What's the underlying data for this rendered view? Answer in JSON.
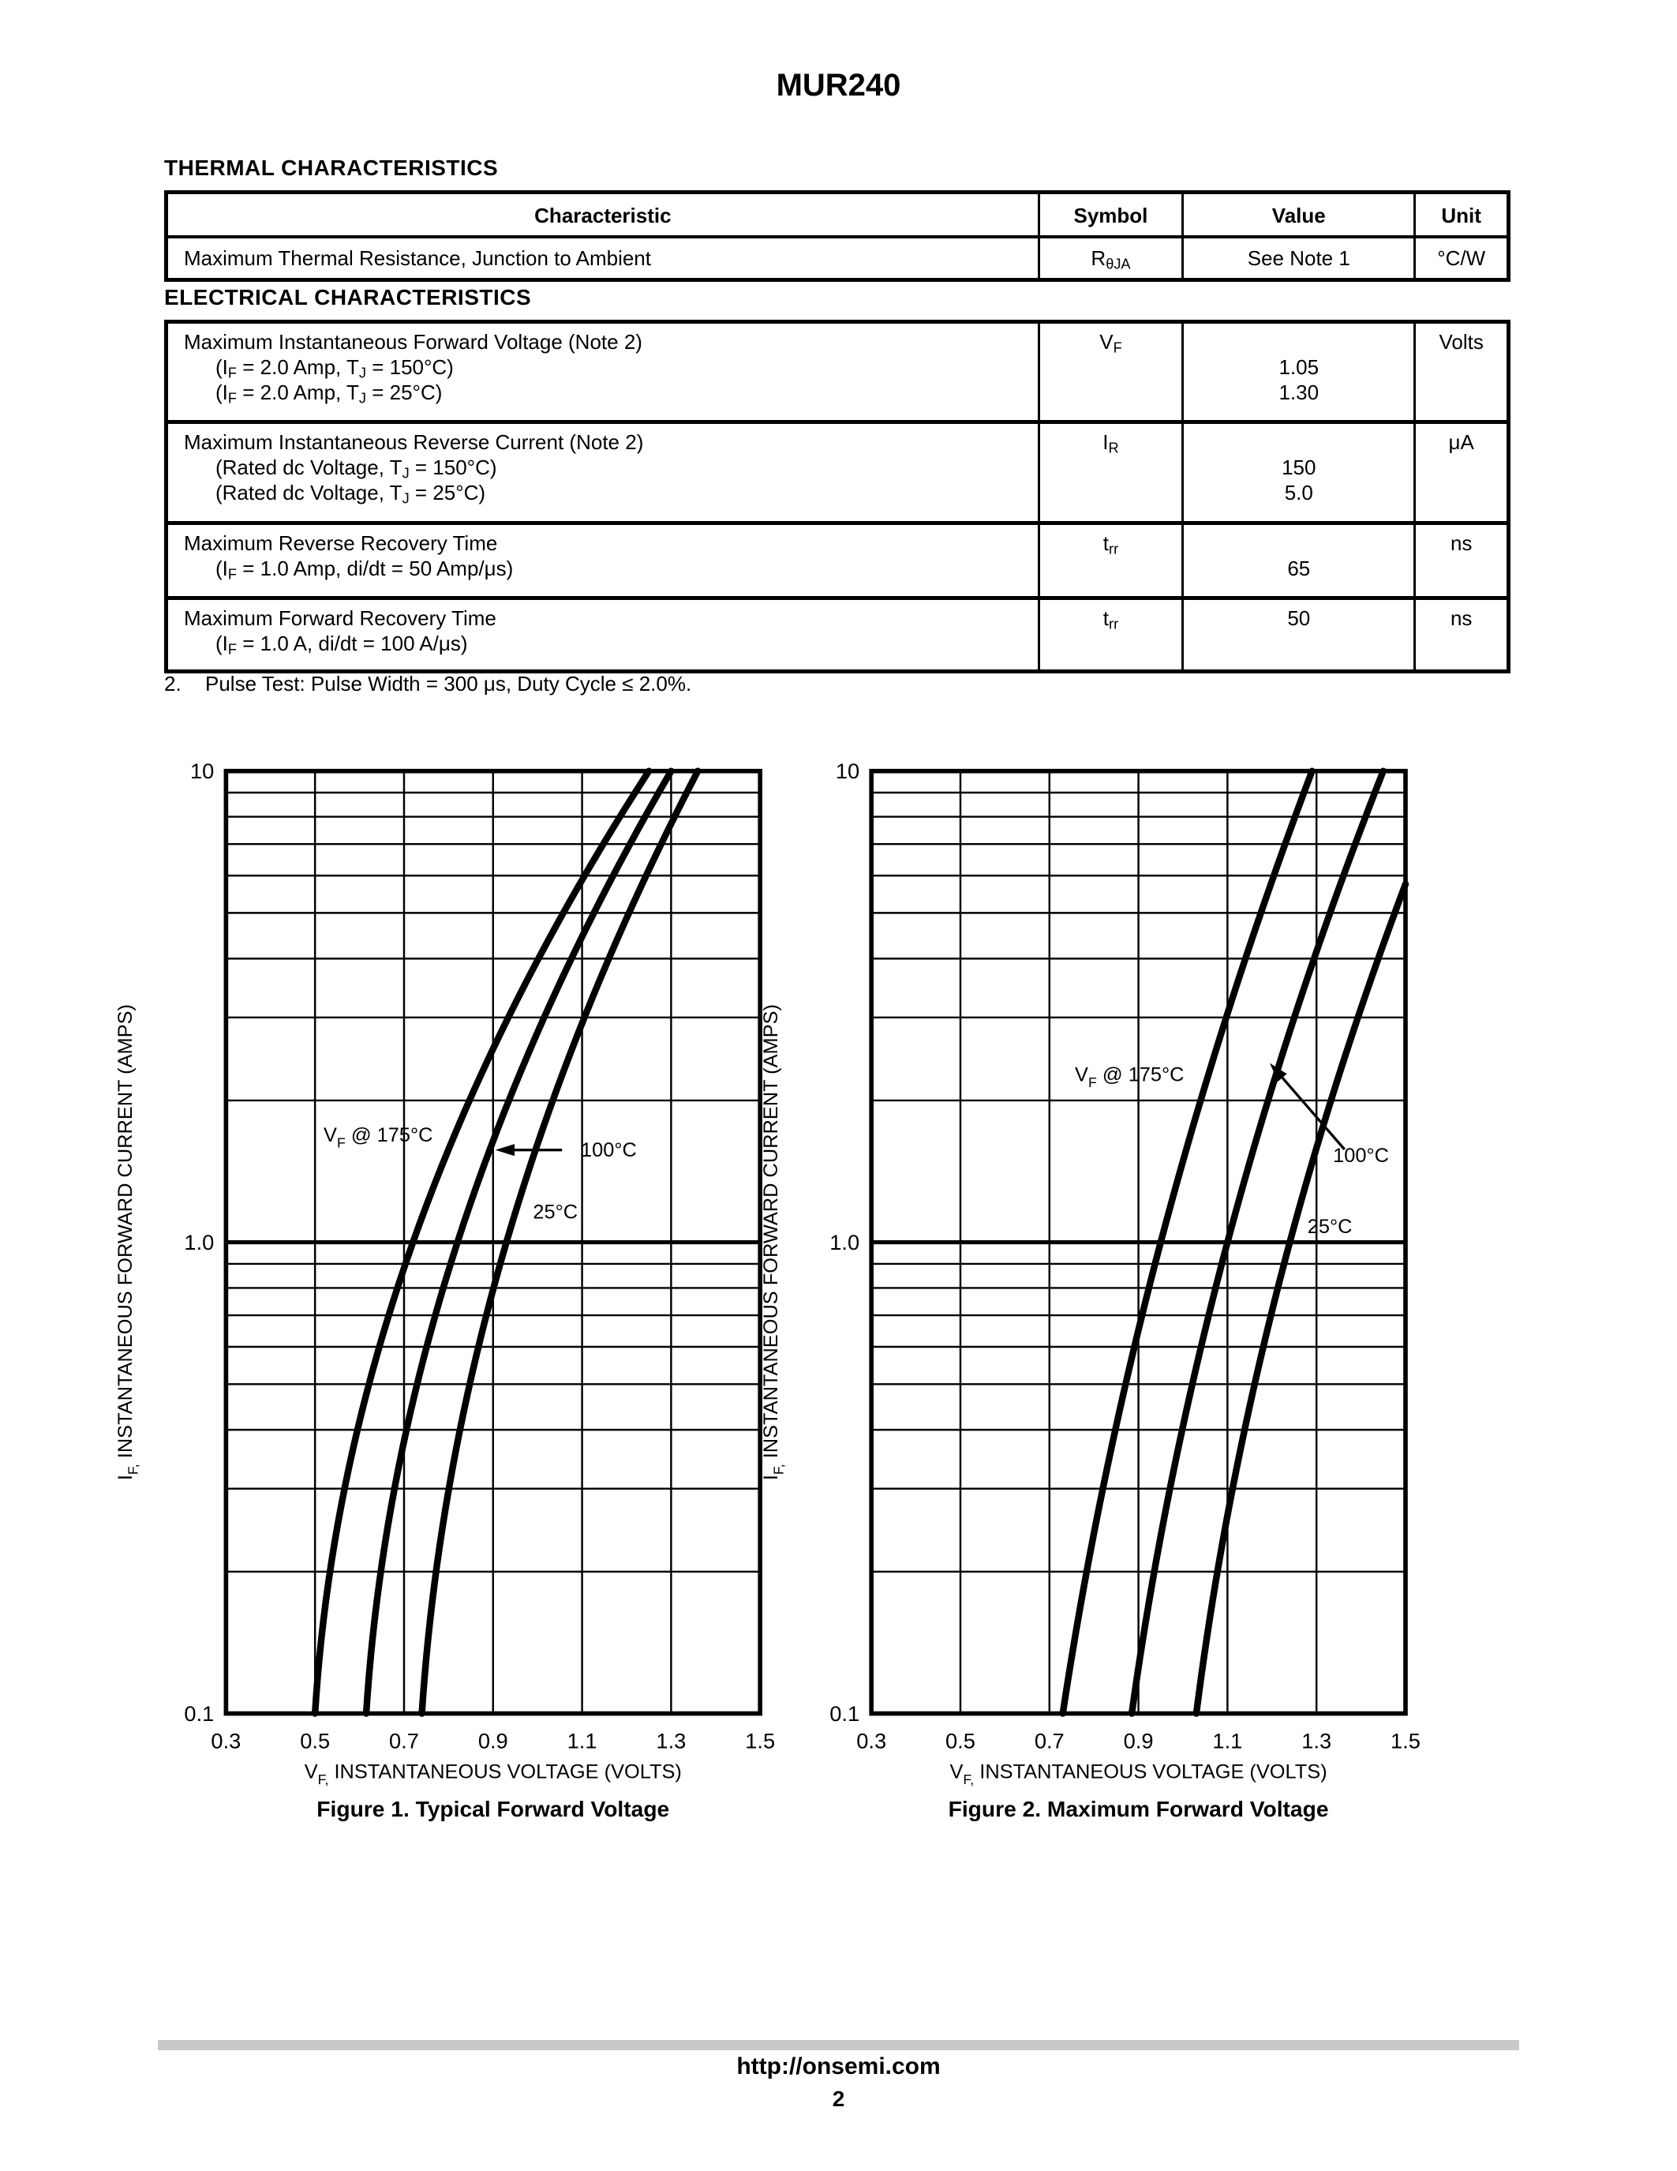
{
  "page": {
    "title": "MUR240",
    "footer_url": "http://onsemi.com",
    "page_number": "2"
  },
  "thermal": {
    "heading": "THERMAL CHARACTERISTICS",
    "columns": [
      "Characteristic",
      "Symbol",
      "Value",
      "Unit"
    ],
    "rows": [
      {
        "lines": [
          "Maximum Thermal Resistance, Junction to Ambient"
        ],
        "symbol": "R~θJA~",
        "values": [
          "See Note 1"
        ],
        "unit": "°C/W"
      }
    ]
  },
  "electrical": {
    "heading": "ELECTRICAL CHARACTERISTICS",
    "rows": [
      {
        "lines": [
          "Maximum Instantaneous Forward Voltage (Note 2)",
          "(I~F~ = 2.0 Amp, T~J~ = 150°C)",
          "(I~F~ = 2.0 Amp, T~J~ = 25°C)"
        ],
        "symbol": "V~F~",
        "values": [
          "",
          "1.05",
          "1.30"
        ],
        "unit": "Volts"
      },
      {
        "lines": [
          "Maximum Instantaneous Reverse Current (Note 2)",
          "(Rated dc Voltage, T~J~ = 150°C)",
          "(Rated dc Voltage, T~J~ = 25°C)"
        ],
        "symbol": "I~R~",
        "values": [
          "",
          "150",
          "5.0"
        ],
        "unit": "μA"
      },
      {
        "lines": [
          "Maximum Reverse Recovery Time",
          "(I~F~ = 1.0 Amp, di/dt = 50 Amp/μs)"
        ],
        "symbol": "t~rr~",
        "values": [
          "",
          "65"
        ],
        "unit": "ns"
      },
      {
        "lines": [
          "Maximum Forward Recovery Time",
          "(I~F~ = 1.0 A, di/dt = 100 A/μs)"
        ],
        "symbol": "t~rr~",
        "values": [
          "50"
        ],
        "unit": "ns"
      }
    ]
  },
  "note": {
    "num": "2.",
    "text": "Pulse Test: Pulse Width = 300 μs, Duty Cycle ≤ 2.0%."
  },
  "chart_data": [
    {
      "type": "line",
      "caption": "Figure 1. Typical Forward Voltage",
      "xlabel": "V~F,~ INSTANTANEOUS VOLTAGE (VOLTS)",
      "ylabel": "I~F,~ INSTANTANEOUS FORWARD CURRENT (AMPS)",
      "xlim": [
        0.3,
        1.5
      ],
      "ylim": [
        0.1,
        10
      ],
      "log_y": true,
      "grid": "on",
      "x_ticks": [
        "0.3",
        "0.5",
        "0.7",
        "0.9",
        "1.1",
        "1.3",
        "1.5"
      ],
      "y_ticks": [
        {
          "label": "10",
          "value": 10
        },
        {
          "label": "1.0",
          "value": 1
        },
        {
          "label": "0.1",
          "value": 0.1
        }
      ],
      "series": [
        {
          "name": "175°C",
          "v_at_0p1A": 0.5,
          "v_at_1A": 0.72,
          "v_at_10A": 1.25
        },
        {
          "name": "100°C",
          "v_at_0p1A": 0.615,
          "v_at_1A": 0.82,
          "v_at_10A": 1.3
        },
        {
          "name": "25°C",
          "v_at_0p1A": 0.74,
          "v_at_1A": 0.93,
          "v_at_10A": 1.36
        }
      ],
      "annotations": [
        {
          "text": "V~F~ @ 175°C",
          "v": 0.642,
          "i": 1.69
        },
        {
          "text": "100°C",
          "v": 1.16,
          "i": 1.57
        },
        {
          "text": "25°C",
          "v": 1.04,
          "i": 1.16
        }
      ],
      "arrow": {
        "v1": 1.055,
        "i1": 1.57,
        "v2": 0.905,
        "i2": 1.57
      }
    },
    {
      "type": "line",
      "caption": "Figure 2. Maximum Forward Voltage",
      "xlabel": "V~F,~ INSTANTANEOUS VOLTAGE (VOLTS)",
      "ylabel": "I~F,~ INSTANTANEOUS FORWARD CURRENT (AMPS)",
      "xlim": [
        0.3,
        1.5
      ],
      "ylim": [
        0.1,
        10
      ],
      "log_y": true,
      "grid": "on",
      "x_ticks": [
        "0.3",
        "0.5",
        "0.7",
        "0.9",
        "1.1",
        "1.3",
        "1.5"
      ],
      "y_ticks": [
        {
          "label": "10",
          "value": 10
        },
        {
          "label": "1.0",
          "value": 1
        },
        {
          "label": "0.1",
          "value": 0.1
        }
      ],
      "series": [
        {
          "name": "175°C",
          "v_at_0p1A": 0.73,
          "v_at_1A": 0.95,
          "v_at_10A": 1.29
        },
        {
          "name": "100°C",
          "v_at_0p1A": 0.885,
          "v_at_1A": 1.1,
          "v_at_10A": 1.45
        },
        {
          "name": "25°C",
          "v_at_0p1A": 1.03,
          "v_at_1A": 1.24,
          "v_at_10A": 1.6
        }
      ],
      "annotations": [
        {
          "text": "V~F~ @ 175°C",
          "v": 0.88,
          "i": 2.27
        },
        {
          "text": "100°C",
          "v": 1.4,
          "i": 1.53
        },
        {
          "text": "25°C",
          "v": 1.33,
          "i": 1.08
        }
      ],
      "arrow": {
        "v1": 1.363,
        "i1": 1.574,
        "v2": 1.195,
        "i2": 2.4
      }
    }
  ]
}
